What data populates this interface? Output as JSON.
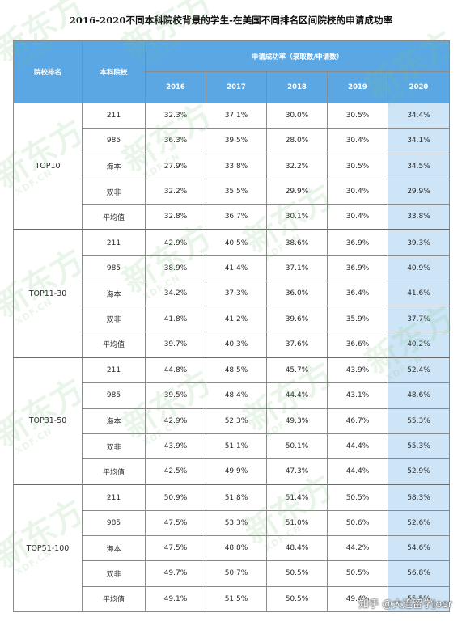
{
  "title": "2016-2020不同本科院校背景的学生-在美国不同排名区间院校的申请成功率",
  "header": {
    "rank_col": "院校排名",
    "school_col": "本科院校",
    "group": "申请成功率（录取数/申请数）",
    "years": [
      "2016",
      "2017",
      "2018",
      "2019",
      "2020"
    ]
  },
  "groups": [
    {
      "rank": "TOP10",
      "rows": [
        {
          "school": "211",
          "values": [
            "32.3%",
            "37.1%",
            "30.0%",
            "30.5%",
            "34.4%"
          ]
        },
        {
          "school": "985",
          "values": [
            "36.3%",
            "39.5%",
            "28.0%",
            "30.4%",
            "34.1%"
          ]
        },
        {
          "school": "海本",
          "values": [
            "27.9%",
            "33.8%",
            "32.2%",
            "30.5%",
            "34.5%"
          ]
        },
        {
          "school": "双非",
          "values": [
            "32.2%",
            "35.5%",
            "29.9%",
            "30.4%",
            "29.9%"
          ]
        },
        {
          "school": "平均值",
          "values": [
            "32.8%",
            "36.7%",
            "30.1%",
            "30.4%",
            "33.8%"
          ]
        }
      ]
    },
    {
      "rank": "TOP11-30",
      "rows": [
        {
          "school": "211",
          "values": [
            "42.9%",
            "40.5%",
            "38.6%",
            "36.9%",
            "39.3%"
          ]
        },
        {
          "school": "985",
          "values": [
            "38.9%",
            "41.4%",
            "37.1%",
            "36.9%",
            "40.9%"
          ]
        },
        {
          "school": "海本",
          "values": [
            "34.2%",
            "37.3%",
            "36.0%",
            "36.4%",
            "41.6%"
          ]
        },
        {
          "school": "双非",
          "values": [
            "41.8%",
            "41.2%",
            "39.6%",
            "35.9%",
            "37.7%"
          ]
        },
        {
          "school": "平均值",
          "values": [
            "39.7%",
            "40.3%",
            "37.6%",
            "36.6%",
            "40.2%"
          ]
        }
      ]
    },
    {
      "rank": "TOP31-50",
      "rows": [
        {
          "school": "211",
          "values": [
            "44.8%",
            "48.5%",
            "45.7%",
            "43.9%",
            "52.4%"
          ]
        },
        {
          "school": "985",
          "values": [
            "39.5%",
            "48.4%",
            "44.4%",
            "43.1%",
            "48.6%"
          ]
        },
        {
          "school": "海本",
          "values": [
            "42.9%",
            "52.3%",
            "49.3%",
            "46.7%",
            "55.3%"
          ]
        },
        {
          "school": "双非",
          "values": [
            "43.9%",
            "51.1%",
            "50.1%",
            "44.4%",
            "55.3%"
          ]
        },
        {
          "school": "平均值",
          "values": [
            "42.5%",
            "49.9%",
            "47.3%",
            "44.4%",
            "52.9%"
          ]
        }
      ]
    },
    {
      "rank": "TOP51-100",
      "rows": [
        {
          "school": "211",
          "values": [
            "50.9%",
            "51.8%",
            "51.4%",
            "50.5%",
            "58.3%"
          ]
        },
        {
          "school": "985",
          "values": [
            "47.5%",
            "53.3%",
            "51.0%",
            "50.6%",
            "52.6%"
          ]
        },
        {
          "school": "海本",
          "values": [
            "47.5%",
            "48.8%",
            "48.4%",
            "44.2%",
            "54.6%"
          ]
        },
        {
          "school": "双非",
          "values": [
            "49.7%",
            "50.7%",
            "50.5%",
            "50.5%",
            "56.8%"
          ]
        },
        {
          "school": "平均值",
          "values": [
            "49.1%",
            "51.5%",
            "50.5%",
            "49.4%",
            "55.5%"
          ]
        }
      ]
    }
  ],
  "watermark_text": "新东方",
  "watermark_sub": "XDF.CN",
  "footer_watermark": "知乎 @大连留学Joer",
  "colors": {
    "header_bg": "#5aa7e4",
    "highlight_col": "#cde5f7",
    "watermark": "#7ac57c"
  }
}
